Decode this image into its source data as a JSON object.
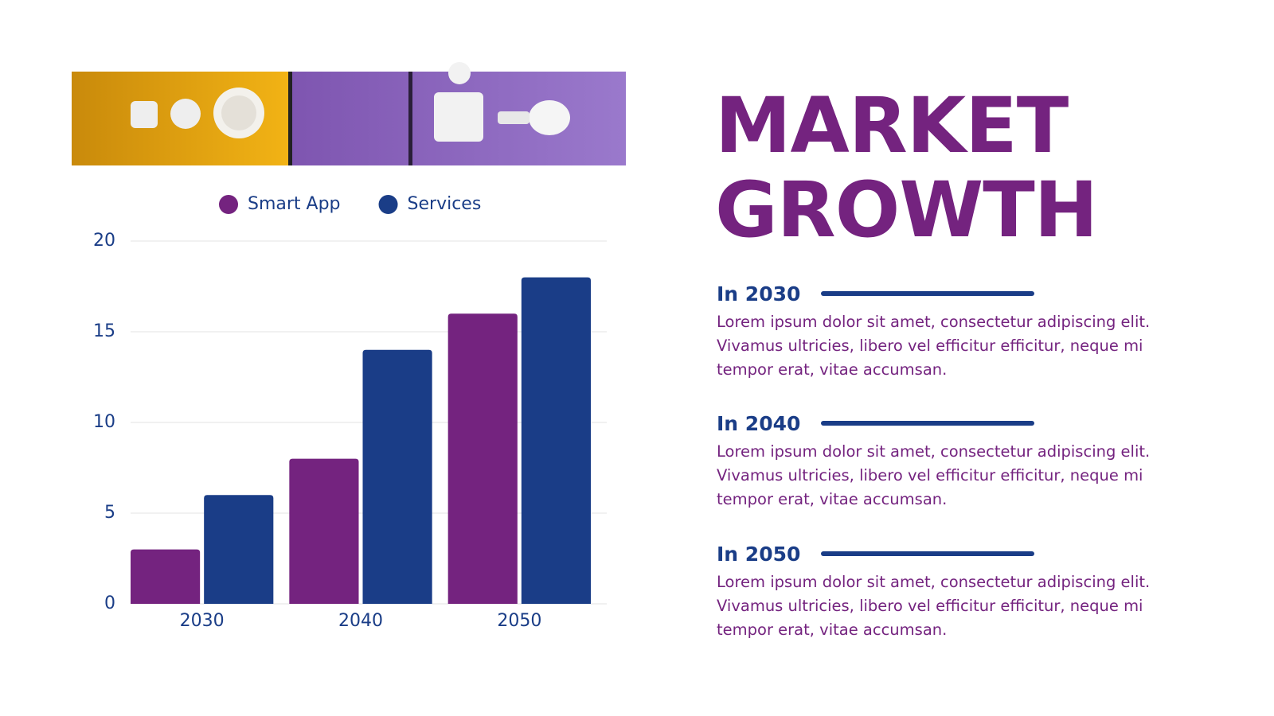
{
  "chart_data": {
    "type": "bar",
    "categories": [
      "2030",
      "2040",
      "2050"
    ],
    "series": [
      {
        "name": "Smart App",
        "color": "#74237f",
        "values": [
          3,
          8,
          16
        ]
      },
      {
        "name": "Services",
        "color": "#1a3d87",
        "values": [
          6,
          14,
          18
        ]
      }
    ],
    "ylim": [
      0,
      20
    ],
    "yticks": [
      0,
      5,
      10,
      15,
      20
    ],
    "grid": true,
    "legend": "top"
  },
  "title": [
    "MARKET",
    "GROWTH"
  ],
  "items": [
    {
      "heading": "In 2030",
      "text": "Lorem ipsum dolor sit amet, consectetur adipiscing elit. Vivamus ultricies, libero vel efficitur efficitur, neque mi tempor erat, vitae accumsan."
    },
    {
      "heading": "In 2040",
      "text": "Lorem ipsum dolor sit amet, consectetur adipiscing elit. Vivamus ultricies, libero vel efficitur efficitur, neque mi tempor erat, vitae accumsan."
    },
    {
      "heading": "In 2050",
      "text": "Lorem ipsum dolor sit amet, consectetur adipiscing elit. Vivamus ultricies, libero vel efficitur efficitur, neque mi tempor erat, vitae accumsan."
    }
  ]
}
